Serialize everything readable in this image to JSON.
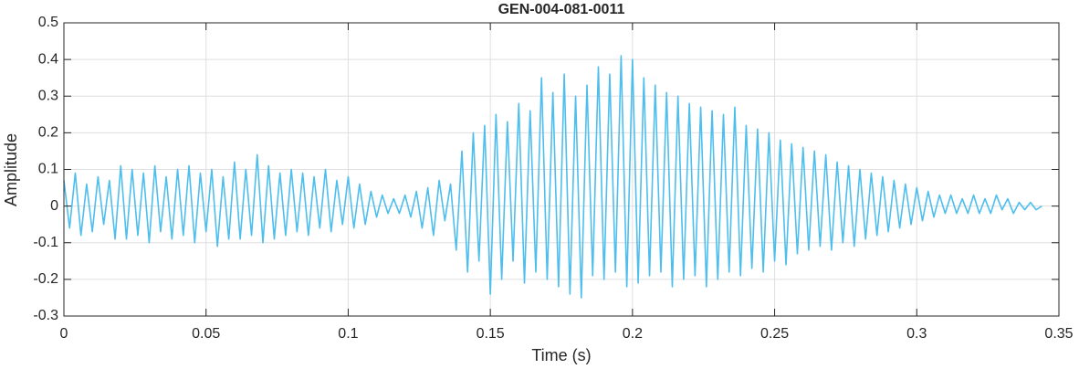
{
  "chart_data": {
    "type": "line",
    "title": "GEN-004-081-0011",
    "xlabel": "Time (s)",
    "ylabel": "Amplitude",
    "x": [
      0,
      0.002,
      0.004,
      0.006,
      0.008,
      0.01,
      0.012,
      0.014,
      0.016,
      0.018,
      0.02,
      0.022,
      0.024,
      0.026,
      0.028,
      0.03,
      0.032,
      0.034,
      0.036,
      0.038,
      0.04,
      0.042,
      0.044,
      0.046,
      0.048,
      0.05,
      0.052,
      0.054,
      0.056,
      0.058,
      0.06,
      0.062,
      0.064,
      0.066,
      0.068,
      0.07,
      0.072,
      0.074,
      0.076,
      0.078,
      0.08,
      0.082,
      0.084,
      0.086,
      0.088,
      0.09,
      0.092,
      0.094,
      0.096,
      0.098,
      0.1,
      0.102,
      0.104,
      0.106,
      0.108,
      0.11,
      0.112,
      0.114,
      0.116,
      0.118,
      0.12,
      0.122,
      0.124,
      0.126,
      0.128,
      0.13,
      0.132,
      0.134,
      0.136,
      0.138,
      0.14,
      0.142,
      0.144,
      0.146,
      0.148,
      0.15,
      0.152,
      0.154,
      0.156,
      0.158,
      0.16,
      0.162,
      0.164,
      0.166,
      0.168,
      0.17,
      0.172,
      0.174,
      0.176,
      0.178,
      0.18,
      0.182,
      0.184,
      0.186,
      0.188,
      0.19,
      0.192,
      0.194,
      0.196,
      0.198,
      0.2,
      0.202,
      0.204,
      0.206,
      0.208,
      0.21,
      0.212,
      0.214,
      0.216,
      0.218,
      0.22,
      0.222,
      0.224,
      0.226,
      0.228,
      0.23,
      0.232,
      0.234,
      0.236,
      0.238,
      0.24,
      0.242,
      0.244,
      0.246,
      0.248,
      0.25,
      0.252,
      0.254,
      0.256,
      0.258,
      0.26,
      0.262,
      0.264,
      0.266,
      0.268,
      0.27,
      0.272,
      0.274,
      0.276,
      0.278,
      0.28,
      0.282,
      0.284,
      0.286,
      0.288,
      0.29,
      0.292,
      0.294,
      0.296,
      0.298,
      0.3,
      0.302,
      0.304,
      0.306,
      0.308,
      0.31,
      0.312,
      0.314,
      0.316,
      0.318,
      0.32,
      0.322,
      0.324,
      0.326,
      0.328,
      0.33,
      0.332,
      0.334,
      0.336,
      0.338,
      0.34,
      0.342,
      0.344
    ],
    "values": [
      0.07,
      -0.06,
      0.09,
      -0.08,
      0.06,
      -0.07,
      0.08,
      -0.05,
      0.07,
      -0.09,
      0.11,
      -0.09,
      0.1,
      -0.08,
      0.09,
      -0.1,
      0.11,
      -0.07,
      0.08,
      -0.09,
      0.1,
      -0.08,
      0.11,
      -0.1,
      0.09,
      -0.07,
      0.1,
      -0.11,
      0.08,
      -0.09,
      0.12,
      -0.09,
      0.1,
      -0.08,
      0.14,
      -0.1,
      0.11,
      -0.09,
      0.09,
      -0.08,
      0.1,
      -0.07,
      0.09,
      -0.08,
      0.08,
      -0.06,
      0.1,
      -0.07,
      0.07,
      -0.05,
      0.08,
      -0.06,
      0.06,
      -0.05,
      0.04,
      -0.03,
      0.03,
      -0.02,
      0.02,
      -0.02,
      0.03,
      -0.03,
      0.04,
      -0.06,
      0.05,
      -0.08,
      0.07,
      -0.04,
      0.06,
      -0.12,
      0.15,
      -0.18,
      0.2,
      -0.15,
      0.22,
      -0.24,
      0.25,
      -0.2,
      0.23,
      -0.15,
      0.28,
      -0.21,
      0.26,
      -0.18,
      0.35,
      -0.2,
      0.31,
      -0.22,
      0.36,
      -0.24,
      0.3,
      -0.25,
      0.33,
      -0.19,
      0.38,
      -0.2,
      0.36,
      -0.18,
      0.41,
      -0.22,
      0.4,
      -0.21,
      0.35,
      -0.19,
      0.33,
      -0.18,
      0.31,
      -0.22,
      0.3,
      -0.2,
      0.28,
      -0.19,
      0.27,
      -0.22,
      0.26,
      -0.2,
      0.25,
      -0.18,
      0.27,
      -0.19,
      0.22,
      -0.17,
      0.21,
      -0.18,
      0.2,
      -0.15,
      0.18,
      -0.16,
      0.17,
      -0.13,
      0.16,
      -0.12,
      0.15,
      -0.11,
      0.14,
      -0.12,
      0.12,
      -0.1,
      0.11,
      -0.11,
      0.1,
      -0.09,
      0.09,
      -0.08,
      0.08,
      -0.07,
      0.07,
      -0.06,
      0.06,
      -0.05,
      0.05,
      -0.04,
      0.04,
      -0.03,
      0.03,
      -0.02,
      0.03,
      -0.02,
      0.02,
      -0.02,
      0.03,
      -0.02,
      0.02,
      -0.02,
      0.03,
      -0.01,
      0.02,
      -0.02,
      0.01,
      -0.01,
      0.01,
      -0.01,
      0.0
    ],
    "color": "#4dbeee",
    "xlim": [
      0,
      0.35
    ],
    "xticks": [
      0,
      0.05,
      0.1,
      0.15,
      0.2,
      0.25,
      0.3,
      0.35
    ],
    "ylim": [
      -0.3,
      0.5
    ],
    "yticks": [
      -0.3,
      -0.2,
      -0.1,
      0,
      0.1,
      0.2,
      0.3,
      0.4,
      0.5
    ],
    "grid": true
  }
}
